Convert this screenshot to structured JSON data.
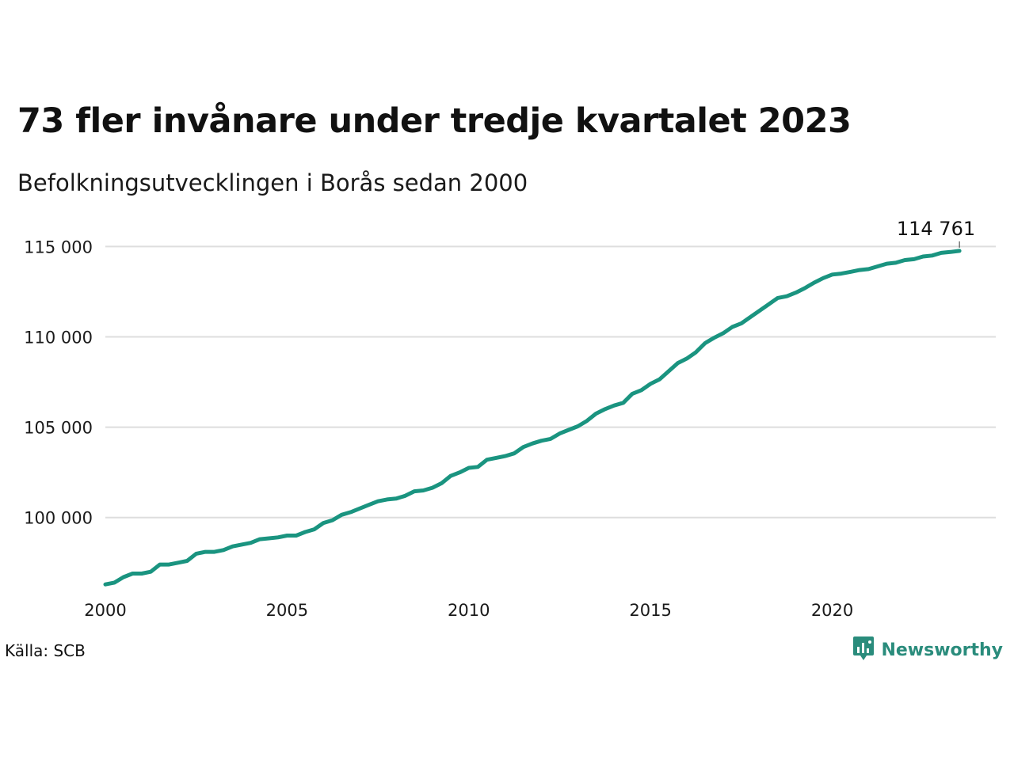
{
  "header": {
    "title": "73 fler invånare under tredje kvartalet 2023",
    "subtitle": "Befolkningsutvecklingen i Borås sedan 2000"
  },
  "footer": {
    "source": "Källa: SCB",
    "brand": "Newsworthy",
    "brand_icon": "bar-chart-icon",
    "brand_color": "#2a8c7c"
  },
  "chart_data": {
    "type": "line",
    "title": "73 fler invånare under tredje kvartalet 2023",
    "subtitle": "Befolkningsutvecklingen i Borås sedan 2000",
    "xlabel": "",
    "ylabel": "",
    "xlim": [
      2000,
      2024.5
    ],
    "ylim": [
      96000,
      115500
    ],
    "x_ticks": [
      2000,
      2005,
      2010,
      2015,
      2020
    ],
    "x_tick_labels": [
      "2000",
      "2005",
      "2010",
      "2015",
      "2020"
    ],
    "y_ticks": [
      100000,
      105000,
      110000,
      115000
    ],
    "y_tick_labels": [
      "100 000",
      "105 000",
      "110 000",
      "115 000"
    ],
    "grid": true,
    "line_color": "#1a9480",
    "end_label": "114 761",
    "series": [
      {
        "x": [
          2000.0,
          2000.25,
          2000.5,
          2000.75,
          2001.0,
          2001.25,
          2001.5,
          2001.75,
          2002.0,
          2002.25,
          2002.5,
          2002.75,
          2003.0,
          2003.25,
          2003.5,
          2003.75,
          2004.0,
          2004.25,
          2004.5,
          2004.75,
          2005.0,
          2005.25,
          2005.5,
          2005.75,
          2006.0,
          2006.25,
          2006.5,
          2006.75,
          2007.0,
          2007.25,
          2007.5,
          2007.75,
          2008.0,
          2008.25,
          2008.5,
          2008.75,
          2009.0,
          2009.25,
          2009.5,
          2009.75,
          2010.0,
          2010.25,
          2010.5,
          2010.75,
          2011.0,
          2011.25,
          2011.5,
          2011.75,
          2012.0,
          2012.25,
          2012.5,
          2012.75,
          2013.0,
          2013.25,
          2013.5,
          2013.75,
          2014.0,
          2014.25,
          2014.5,
          2014.75,
          2015.0,
          2015.25,
          2015.5,
          2015.75,
          2016.0,
          2016.25,
          2016.5,
          2016.75,
          2017.0,
          2017.25,
          2017.5,
          2017.75,
          2018.0,
          2018.25,
          2018.5,
          2018.75,
          2019.0,
          2019.25,
          2019.5,
          2019.75,
          2020.0,
          2020.25,
          2020.5,
          2020.75,
          2021.0,
          2021.25,
          2021.5,
          2021.75,
          2022.0,
          2022.25,
          2022.5,
          2022.75,
          2023.0,
          2023.25,
          2023.5
        ],
        "values": [
          96300,
          96400,
          96700,
          96900,
          96900,
          97000,
          97400,
          97400,
          97500,
          97600,
          98000,
          98100,
          98100,
          98200,
          98400,
          98500,
          98600,
          98800,
          98850,
          98900,
          99000,
          99000,
          99200,
          99350,
          99700,
          99850,
          100150,
          100300,
          100500,
          100700,
          100900,
          101000,
          101050,
          101200,
          101450,
          101500,
          101650,
          101900,
          102300,
          102500,
          102750,
          102800,
          103200,
          103300,
          103400,
          103550,
          103900,
          104100,
          104250,
          104350,
          104650,
          104850,
          105050,
          105350,
          105750,
          106000,
          106200,
          106350,
          106850,
          107050,
          107400,
          107650,
          108100,
          108550,
          108800,
          109150,
          109650,
          109950,
          110200,
          110550,
          110750,
          111100,
          111450,
          111800,
          112150,
          112250,
          112450,
          112700,
          113000,
          113250,
          113450,
          113500,
          113600,
          113700,
          113750,
          113900,
          114050,
          114100,
          114250,
          114300,
          114450,
          114500,
          114650,
          114700,
          114761
        ]
      }
    ]
  }
}
